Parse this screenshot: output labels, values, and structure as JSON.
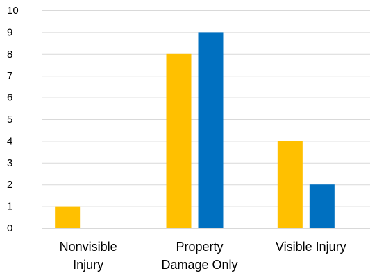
{
  "chart_data": {
    "type": "bar",
    "title": "",
    "xlabel": "",
    "ylabel": "",
    "ylim": [
      0,
      10
    ],
    "yticks": [
      "0",
      "1",
      "2",
      "3",
      "4",
      "5",
      "6",
      "7",
      "8",
      "9",
      "10"
    ],
    "grid": true,
    "legend": "none",
    "categories": [
      [
        "Nonvisible",
        "Injury"
      ],
      [
        "Property",
        "Damage Only"
      ],
      [
        "Visible Injury"
      ]
    ],
    "series": [
      {
        "color": "#FFC000",
        "values": [
          1,
          8,
          4
        ]
      },
      {
        "color": "#0070C0",
        "values": [
          0,
          9,
          2
        ]
      }
    ]
  }
}
